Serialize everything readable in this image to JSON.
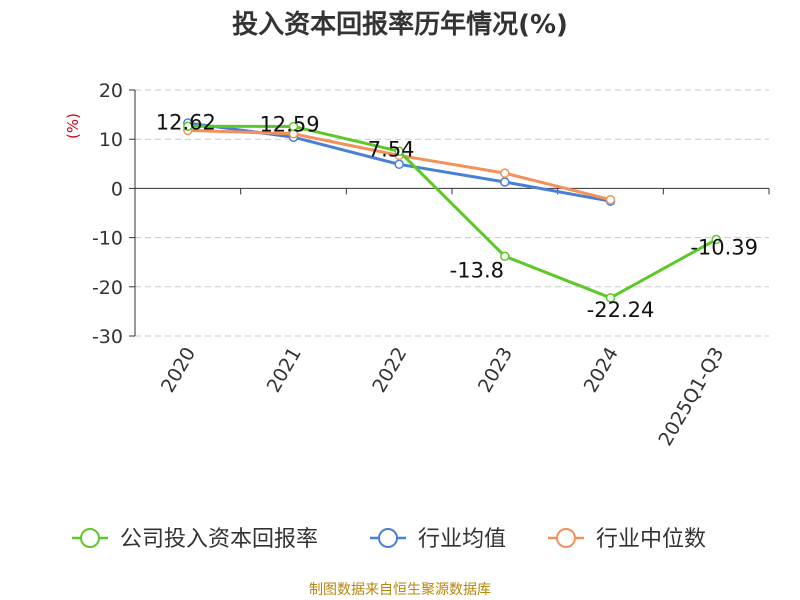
{
  "chart_data": {
    "type": "line",
    "title": "投入资本回报率历年情况(%)",
    "ylabel": "(%)",
    "xlabel": "",
    "categories": [
      "2020",
      "2021",
      "2022",
      "2023",
      "2024",
      "2025Q1-Q3"
    ],
    "ylim": [
      -30,
      20
    ],
    "yticks": [
      20,
      10,
      0,
      -10,
      -20,
      -30
    ],
    "grid": true,
    "legend": "bottom",
    "series": [
      {
        "name": "公司投入资本回报率",
        "color": "#5cc82a",
        "values": [
          12.62,
          12.59,
          7.54,
          -13.8,
          -22.24,
          -10.39
        ],
        "labels": [
          "12.62",
          "12.59",
          "7.54",
          "-13.8",
          "-22.24",
          "-10.39"
        ]
      },
      {
        "name": "行业均值",
        "color": "#4a7fd6",
        "values": [
          13.3,
          10.4,
          4.9,
          1.3,
          -2.6,
          null
        ]
      },
      {
        "name": "行业中位数",
        "color": "#f4905a",
        "values": [
          11.8,
          11.1,
          6.7,
          3.1,
          -2.3,
          null
        ]
      }
    ]
  },
  "source": "制图数据来自恒生聚源数据库"
}
